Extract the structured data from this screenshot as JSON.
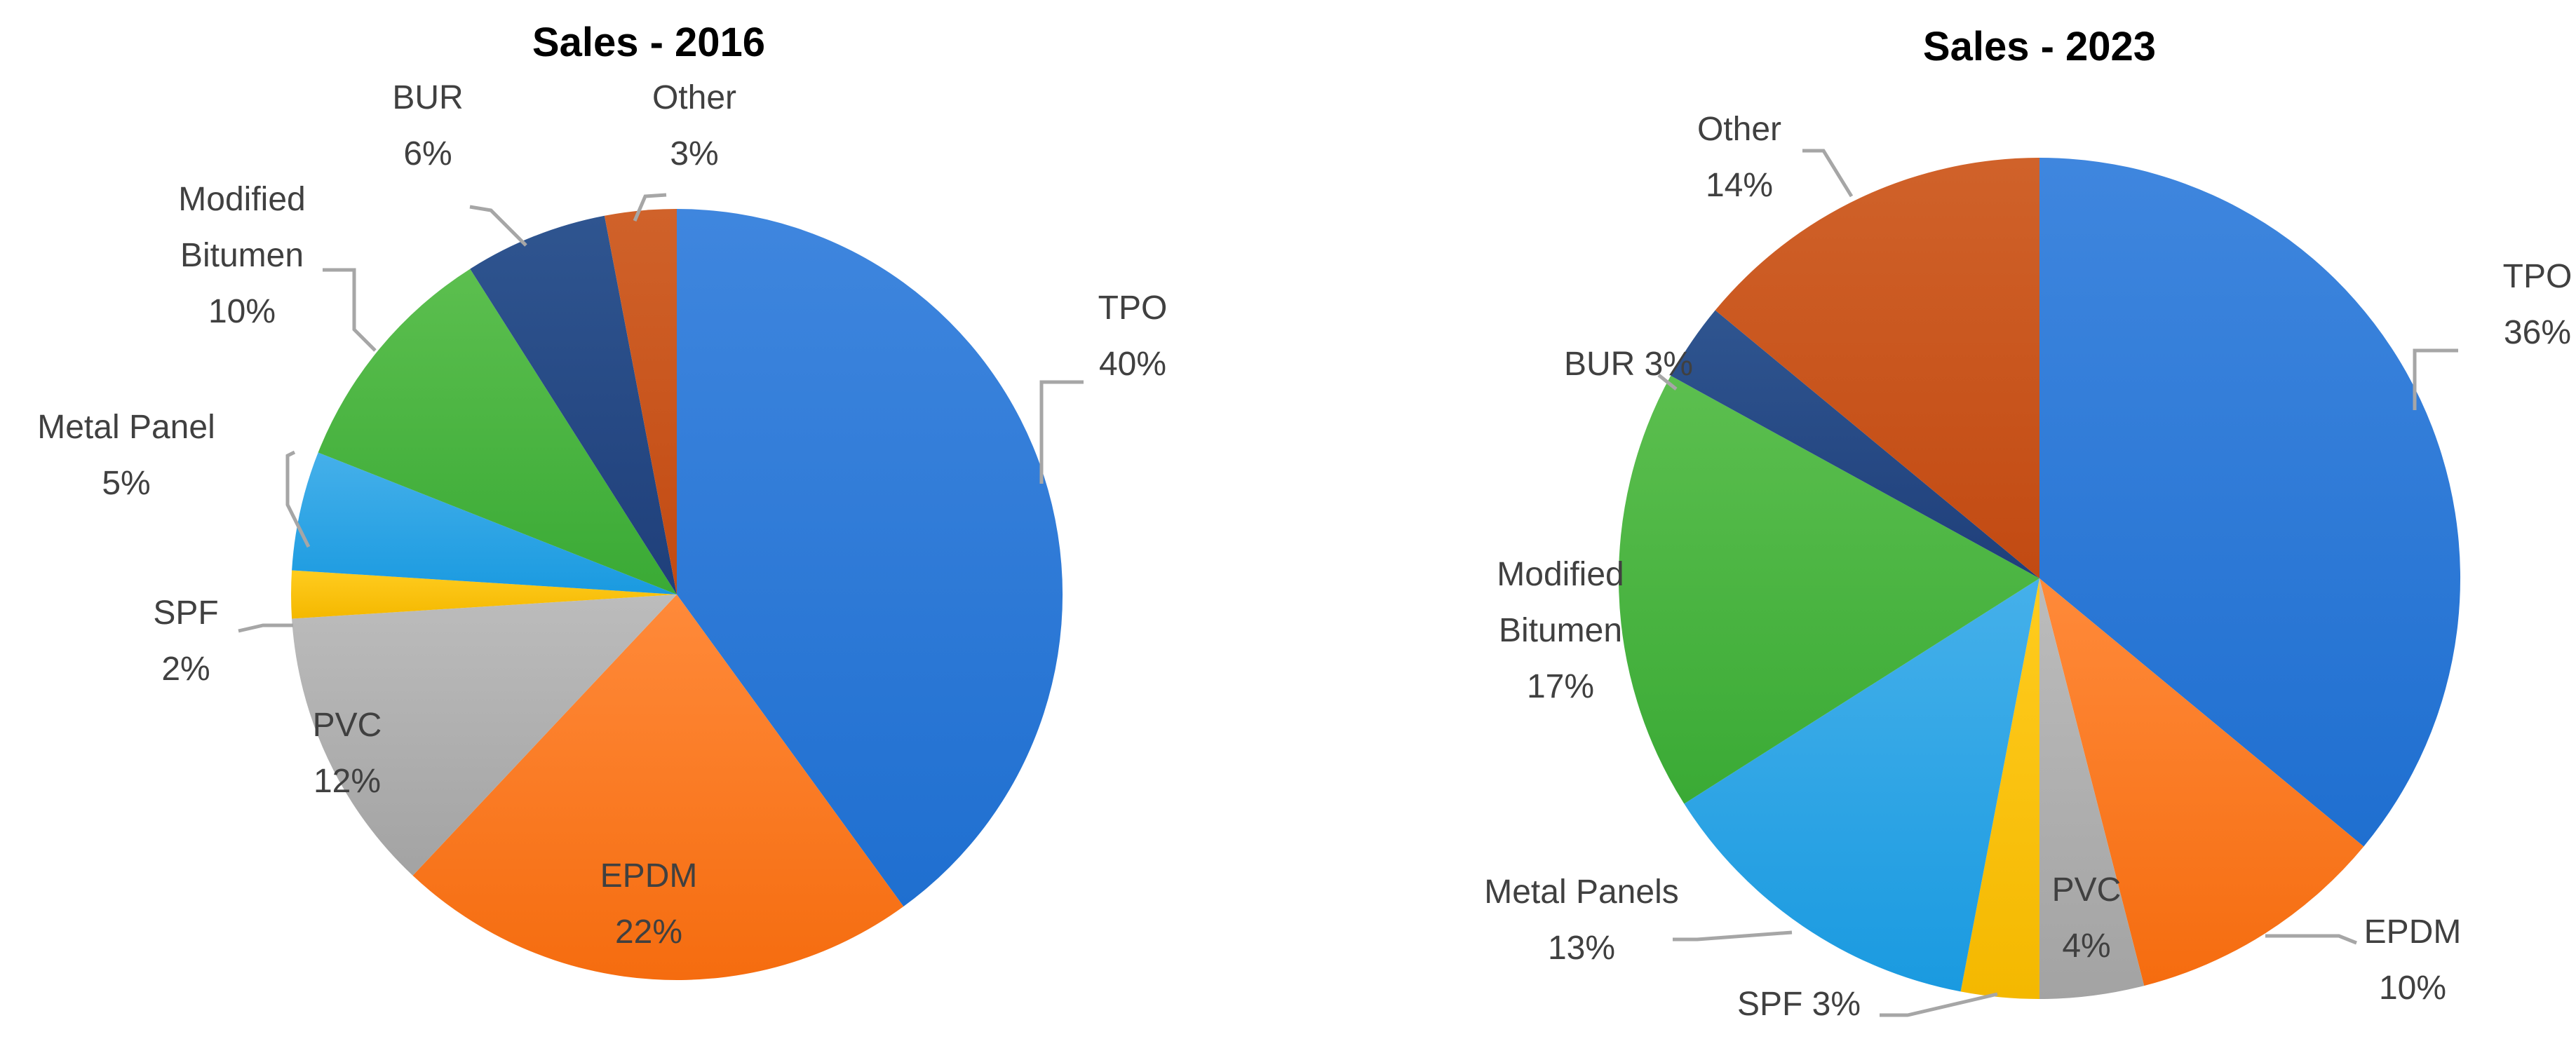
{
  "chart_data": [
    {
      "type": "pie",
      "title": "Sales - 2016",
      "slices": [
        {
          "name": "TPO",
          "value": 40,
          "label": [
            "TPO",
            "40%"
          ],
          "color": "#1f6fd0",
          "light": "#3f86de"
        },
        {
          "name": "EPDM",
          "value": 22,
          "label": [
            "EPDM",
            "22%"
          ],
          "color": "#f56c0f",
          "light": "#ff8a3a"
        },
        {
          "name": "PVC",
          "value": 12,
          "label": [
            "PVC",
            "12%"
          ],
          "color": "#a3a3a3",
          "light": "#bcbcbc"
        },
        {
          "name": "SPF",
          "value": 2,
          "label": [
            "SPF",
            "2%"
          ],
          "color": "#f4b800",
          "light": "#ffcc1f"
        },
        {
          "name": "Metal Panel",
          "value": 5,
          "label": [
            "Metal Panel",
            "5%"
          ],
          "color": "#1a9ae0",
          "light": "#45b0ea"
        },
        {
          "name": "Modified Bitumen",
          "value": 10,
          "label": [
            "Modified",
            "Bitumen",
            "10%"
          ],
          "color": "#3aaa35",
          "light": "#5cbf4f"
        },
        {
          "name": "BUR",
          "value": 6,
          "label": [
            "BUR",
            "6%"
          ],
          "color": "#1f3f7a",
          "light": "#2f5590"
        },
        {
          "name": "Other",
          "value": 3,
          "label": [
            "Other",
            "3%"
          ],
          "color": "#c24a12",
          "light": "#d0622a"
        }
      ]
    },
    {
      "type": "pie",
      "title": "Sales - 2023",
      "slices": [
        {
          "name": "TPO",
          "value": 36,
          "label": [
            "TPO",
            "36%"
          ],
          "color": "#1f6fd0",
          "light": "#3f86de"
        },
        {
          "name": "EPDM",
          "value": 10,
          "label": [
            "EPDM",
            "10%"
          ],
          "color": "#f56c0f",
          "light": "#ff8a3a"
        },
        {
          "name": "PVC",
          "value": 4,
          "label": [
            "PVC",
            "4%"
          ],
          "color": "#a3a3a3",
          "light": "#bcbcbc"
        },
        {
          "name": "SPF",
          "value": 3,
          "label": [
            "SPF 3%"
          ],
          "color": "#f4b800",
          "light": "#ffcc1f"
        },
        {
          "name": "Metal Panels",
          "value": 13,
          "label": [
            "Metal Panels",
            "13%"
          ],
          "color": "#1a9ae0",
          "light": "#45b0ea"
        },
        {
          "name": "Modified Bitumen",
          "value": 17,
          "label": [
            "Modified",
            "Bitumen",
            "17%"
          ],
          "color": "#3aaa35",
          "light": "#5cbf4f"
        },
        {
          "name": "BUR",
          "value": 3,
          "label": [
            "BUR 3%"
          ],
          "color": "#1f3f7a",
          "light": "#2f5590"
        },
        {
          "name": "Other",
          "value": 14,
          "label": [
            "Other",
            "14%"
          ],
          "color": "#c24a12",
          "light": "#d0622a"
        }
      ]
    }
  ]
}
